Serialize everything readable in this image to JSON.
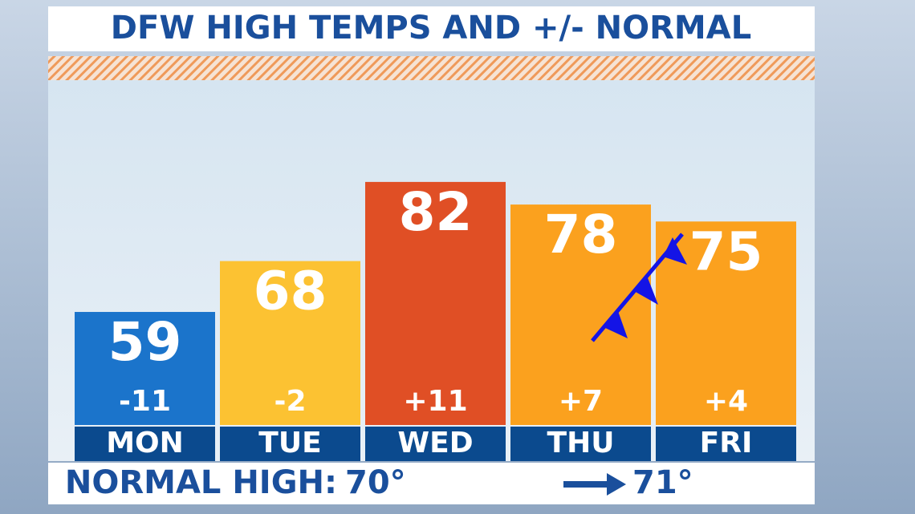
{
  "chart_data": {
    "type": "bar",
    "title": "DFW HIGH TEMPS AND +/- NORMAL",
    "categories": [
      "MON",
      "TUE",
      "WED",
      "THU",
      "FRI"
    ],
    "values": [
      59,
      68,
      82,
      78,
      75
    ],
    "colors": [
      "#1b74cb",
      "#fcc232",
      "#e04f25",
      "#fba11e",
      "#fba11e"
    ],
    "departures": {
      "values": [
        -11,
        -2,
        11,
        7,
        4
      ],
      "value_labels": [
        "-11",
        "-2",
        "+11",
        "+7",
        "+4"
      ]
    },
    "ylim": [
      39,
      100
    ],
    "footer": {
      "label": "NORMAL HIGH:",
      "from": "70°",
      "to": "71°"
    }
  }
}
